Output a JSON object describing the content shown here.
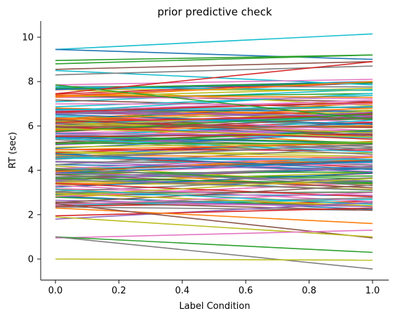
{
  "chart_data": {
    "type": "line",
    "title": "prior predictive check",
    "xlabel": "Label Condition",
    "ylabel": "RT (sec)",
    "xlim": [
      -0.05,
      1.05
    ],
    "ylim": [
      -0.95,
      10.7
    ],
    "x_ticks": [
      "0.0",
      "0.2",
      "0.4",
      "0.6",
      "0.8",
      "1.0"
    ],
    "y_ticks": [
      "0",
      "2",
      "4",
      "6",
      "8",
      "10"
    ],
    "grid": false,
    "legend": "none",
    "palette": [
      "#1f77b4",
      "#ff7f0e",
      "#2ca02c",
      "#d62728",
      "#9467bd",
      "#8c564b",
      "#e377c2",
      "#7f7f7f",
      "#bcbd22",
      "#17becf"
    ],
    "highlighted_lines": [
      {
        "x": [
          0,
          1
        ],
        "y": [
          9.45,
          10.15
        ],
        "color": "#17becf"
      },
      {
        "x": [
          0,
          1
        ],
        "y": [
          9.45,
          9.0
        ],
        "color": "#1f77b4"
      },
      {
        "x": [
          0,
          1
        ],
        "y": [
          8.95,
          9.2
        ],
        "color": "#2ca02c"
      },
      {
        "x": [
          0,
          1
        ],
        "y": [
          8.8,
          9.2
        ],
        "color": "#2ca02c"
      },
      {
        "x": [
          0,
          1
        ],
        "y": [
          8.55,
          8.9
        ],
        "color": "#8c564b"
      },
      {
        "x": [
          0,
          1
        ],
        "y": [
          8.5,
          7.85
        ],
        "color": "#17becf"
      },
      {
        "x": [
          0,
          1
        ],
        "y": [
          8.3,
          8.7
        ],
        "color": "#7f7f7f"
      },
      {
        "x": [
          0,
          1
        ],
        "y": [
          7.85,
          8.1
        ],
        "color": "#e377c2"
      },
      {
        "x": [
          0,
          1
        ],
        "y": [
          7.45,
          8.9
        ],
        "color": "#d62728"
      },
      {
        "x": [
          0,
          1
        ],
        "y": [
          7.3,
          8.0
        ],
        "color": "#ff7f0e"
      },
      {
        "x": [
          0,
          1
        ],
        "y": [
          7.85,
          6.3
        ],
        "color": "#2ca02c"
      },
      {
        "x": [
          0,
          1
        ],
        "y": [
          1.8,
          2.55
        ],
        "color": "#9467bd"
      },
      {
        "x": [
          0,
          1
        ],
        "y": [
          1.95,
          2.3
        ],
        "color": "#d62728"
      },
      {
        "x": [
          0,
          1
        ],
        "y": [
          2.3,
          1.6
        ],
        "color": "#ff7f0e"
      },
      {
        "x": [
          0,
          1
        ],
        "y": [
          2.5,
          0.95
        ],
        "color": "#8c564b"
      },
      {
        "x": [
          0,
          1
        ],
        "y": [
          1.9,
          1.0
        ],
        "color": "#bcbd22"
      },
      {
        "x": [
          0,
          1
        ],
        "y": [
          0.95,
          1.3
        ],
        "color": "#e377c2"
      },
      {
        "x": [
          0,
          1
        ],
        "y": [
          1.0,
          0.3
        ],
        "color": "#2ca02c"
      },
      {
        "x": [
          0,
          1
        ],
        "y": [
          1.0,
          -0.45
        ],
        "color": "#7f7f7f"
      },
      {
        "x": [
          0,
          1
        ],
        "y": [
          0.0,
          -0.05
        ],
        "color": "#bcbd22"
      }
    ],
    "bulk_series": {
      "count": 180,
      "x": [
        0,
        1
      ],
      "y_range": [
        2.3,
        7.8
      ],
      "note_values_are_approximate": true
    }
  }
}
